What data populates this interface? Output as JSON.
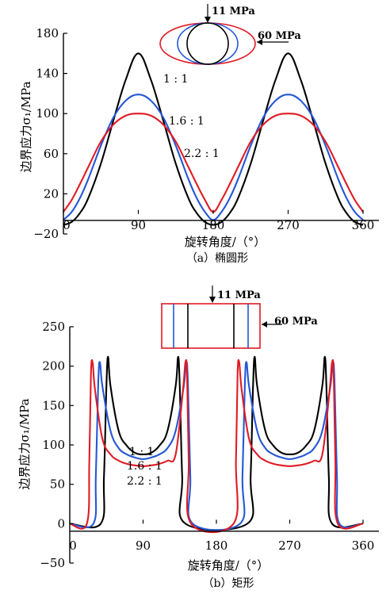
{
  "chart_data": [
    {
      "type": "line",
      "caption": "（a）椭圆形",
      "xlabel": "旋转角度/（°）",
      "ylabel": "边界应力σ₁/MPa",
      "xlim": [
        0,
        360
      ],
      "ylim": [
        -20,
        180
      ],
      "xticks": [
        "0",
        "90",
        "180",
        "270",
        "360"
      ],
      "yticks": [
        "−20",
        "20",
        "60",
        "100",
        "140",
        "180"
      ],
      "inset": {
        "shape": "ellipse",
        "top_load": "11 MPa",
        "side_load": "60 MPa"
      },
      "series": [
        {
          "name": "1 : 1",
          "color": "#000000",
          "x": [
            0,
            10,
            20,
            30,
            45,
            60,
            75,
            90,
            105,
            120,
            135,
            150,
            160,
            170,
            180,
            190,
            200,
            210,
            225,
            240,
            255,
            270,
            285,
            300,
            315,
            330,
            340,
            350,
            360
          ],
          "y": [
            -11,
            -8,
            1,
            16,
            50,
            93,
            134,
            160,
            134,
            93,
            50,
            16,
            1,
            -8,
            -11,
            -8,
            1,
            16,
            50,
            93,
            134,
            160,
            134,
            93,
            50,
            16,
            1,
            -8,
            -11
          ]
        },
        {
          "name": "1.6 : 1",
          "color": "#2457d6",
          "x": [
            0,
            10,
            20,
            30,
            45,
            60,
            75,
            90,
            105,
            120,
            135,
            150,
            160,
            170,
            180,
            190,
            200,
            210,
            225,
            240,
            255,
            270,
            285,
            300,
            315,
            330,
            340,
            350,
            360
          ],
          "y": [
            -6,
            2,
            16,
            35,
            68,
            96,
            113,
            119,
            113,
            96,
            68,
            35,
            16,
            2,
            -6,
            2,
            16,
            35,
            68,
            96,
            113,
            119,
            113,
            96,
            68,
            35,
            16,
            2,
            -6
          ]
        },
        {
          "name": "2.2 : 1",
          "color": "#e01b24",
          "x": [
            0,
            10,
            20,
            30,
            45,
            60,
            75,
            90,
            105,
            120,
            135,
            150,
            160,
            170,
            180,
            190,
            200,
            210,
            225,
            240,
            255,
            270,
            285,
            300,
            315,
            330,
            340,
            350,
            360
          ],
          "y": [
            2,
            14,
            30,
            47,
            72,
            89,
            98,
            100,
            98,
            89,
            72,
            47,
            30,
            14,
            2,
            14,
            30,
            47,
            72,
            89,
            98,
            100,
            98,
            89,
            72,
            47,
            30,
            14,
            2
          ]
        }
      ]
    },
    {
      "type": "line",
      "caption": "（b）矩形",
      "xlabel": "旋转角度/（°）",
      "ylabel": "边界应力σ₁/MPa",
      "xlim": [
        0,
        360
      ],
      "ylim": [
        -50,
        250
      ],
      "xticks": [
        "0",
        "90",
        "180",
        "270",
        "360"
      ],
      "yticks": [
        "−50",
        "0",
        "50",
        "100",
        "150",
        "200",
        "250"
      ],
      "inset": {
        "shape": "rectangle",
        "top_load": "11 MPa",
        "side_load": "60 MPa"
      },
      "series": [
        {
          "name": "1 : 1",
          "color": "#000000",
          "x": [
            0,
            38,
            42,
            45,
            47,
            50,
            60,
            70,
            80,
            90,
            100,
            110,
            120,
            130,
            133,
            135,
            138,
            142,
            218,
            222,
            225,
            227,
            230,
            240,
            250,
            260,
            270,
            280,
            290,
            300,
            310,
            313,
            315,
            318,
            322,
            360
          ],
          "y": [
            0,
            0,
            60,
            175,
            212,
            175,
            118,
            99,
            90,
            88,
            90,
            99,
            118,
            175,
            212,
            175,
            60,
            0,
            0,
            60,
            175,
            212,
            175,
            118,
            99,
            90,
            88,
            90,
            99,
            118,
            175,
            212,
            175,
            60,
            0,
            0
          ]
        },
        {
          "name": "1.6 : 1",
          "color": "#2457d6",
          "x": [
            0,
            29,
            32,
            35,
            37,
            40,
            50,
            60,
            70,
            80,
            90,
            100,
            110,
            120,
            130,
            140,
            143,
            145,
            148,
            151,
            209,
            212,
            215,
            217,
            220,
            230,
            240,
            250,
            260,
            270,
            280,
            290,
            300,
            310,
            320,
            323,
            325,
            328,
            331,
            360
          ],
          "y": [
            0,
            0,
            60,
            180,
            205,
            175,
            118,
            96,
            88,
            84,
            82,
            84,
            88,
            96,
            118,
            175,
            205,
            180,
            60,
            0,
            0,
            60,
            180,
            205,
            175,
            118,
            96,
            88,
            84,
            82,
            84,
            88,
            96,
            118,
            175,
            205,
            180,
            60,
            0,
            0
          ]
        },
        {
          "name": "2.2 : 1",
          "color": "#e01b24",
          "x": [
            0,
            21,
            24,
            26,
            28,
            31,
            40,
            50,
            60,
            70,
            80,
            90,
            100,
            110,
            120,
            130,
            139,
            142,
            144,
            146,
            149,
            201,
            204,
            206,
            208,
            211,
            220,
            230,
            240,
            250,
            260,
            270,
            280,
            290,
            300,
            310,
            319,
            322,
            324,
            326,
            329,
            360
          ],
          "y": [
            0,
            0,
            80,
            190,
            205,
            170,
            108,
            88,
            80,
            76,
            74,
            73,
            74,
            76,
            80,
            88,
            170,
            205,
            190,
            80,
            0,
            0,
            80,
            190,
            205,
            170,
            108,
            88,
            80,
            76,
            74,
            73,
            74,
            76,
            80,
            88,
            170,
            205,
            190,
            80,
            0,
            0
          ]
        }
      ]
    }
  ]
}
